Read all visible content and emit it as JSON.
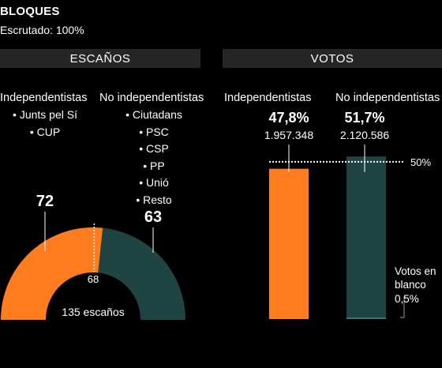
{
  "header": {
    "title": "BLOQUES",
    "subtitle": "Escrutado: 100%"
  },
  "sections": {
    "seats": "ESCAÑOS",
    "votes": "VOTOS"
  },
  "seats": {
    "pro_label": "Independentistas",
    "anti_label": "No independentistas",
    "pro_parties": [
      "Junts pel Sí",
      "CUP"
    ],
    "anti_parties": [
      "Ciutadans",
      "PSC",
      "CSP",
      "PP",
      "Unió",
      "Resto"
    ],
    "pro_value_label": "72",
    "anti_value_label": "63",
    "majority_label": "68",
    "total_label": "135 escaños"
  },
  "votes": {
    "pro_label": "Independentistas",
    "anti_label": "No independentistas",
    "pro_pct_label": "47,8%",
    "anti_pct_label": "51,7%",
    "pro_votes_label": "1.957.348",
    "anti_votes_label": "2.120.586",
    "threshold_label": "50%",
    "blank_label_lines": [
      "Votos en",
      "blanco",
      "0,5%"
    ]
  },
  "colors": {
    "pro": "#ff7d1f",
    "anti": "#204442",
    "background": "#000000",
    "header_bg": "#262626"
  },
  "chart_data": [
    {
      "type": "pie",
      "title": "ESCAÑOS",
      "shape": "half-donut",
      "categories": [
        "Independentistas",
        "No independentistas"
      ],
      "values": [
        72,
        63
      ],
      "total": 135,
      "majority": 68
    },
    {
      "type": "bar",
      "title": "VOTOS",
      "categories": [
        "Independentistas",
        "No independentistas",
        "Votos en blanco"
      ],
      "values": [
        47.8,
        51.7,
        0.5
      ],
      "votes": [
        1957348,
        2120586
      ],
      "unit": "%",
      "reference_line": 50,
      "ylim": [
        0,
        53.5
      ]
    }
  ]
}
